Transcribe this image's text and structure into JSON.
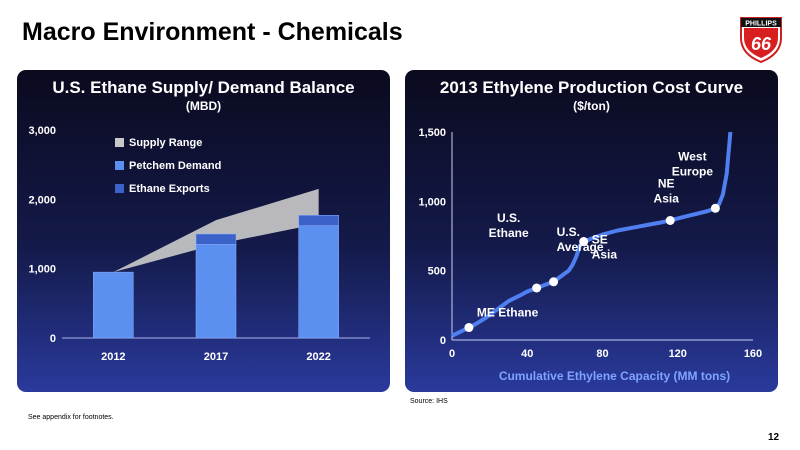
{
  "page": {
    "title": "Macro Environment - Chemicals",
    "footnote": "See appendix for footnotes.",
    "source": "Source: IHS",
    "page_number": "12",
    "logo_text": "PHILLIPS",
    "logo_number": "66"
  },
  "chart_data": [
    {
      "type": "bar",
      "title": "U.S. Ethane Supply/ Demand Balance",
      "subtitle": "(MBD)",
      "categories": [
        "2012",
        "2017",
        "2022"
      ],
      "ylim": [
        0,
        3000
      ],
      "yticks": [
        0,
        1000,
        2000,
        3000
      ],
      "ytick_labels": [
        "0",
        "1,000",
        "2,000",
        "3,000"
      ],
      "series": [
        {
          "name": "Petchem Demand",
          "values": [
            950,
            1350,
            1620
          ],
          "color": "#5b8ff0"
        },
        {
          "name": "Ethane Exports",
          "values": [
            0,
            150,
            150
          ],
          "color": "#3a62c9"
        }
      ],
      "supply_range": {
        "name": "Supply Range",
        "x": [
          2012,
          2017,
          2022
        ],
        "low": [
          950,
          1350,
          1650
        ],
        "high": [
          950,
          1700,
          2150
        ],
        "color": "#c8c8c8"
      },
      "legend": [
        "Supply Range",
        "Petchem Demand",
        "Ethane Exports"
      ],
      "legend_position": "top-center"
    },
    {
      "type": "line",
      "title": "2013 Ethylene Production Cost Curve",
      "subtitle": "($/ton)",
      "xlabel": "Cumulative Ethylene Capacity (MM tons)",
      "xlim": [
        0,
        160
      ],
      "ylim": [
        0,
        1500
      ],
      "xticks": [
        0,
        40,
        80,
        120,
        160
      ],
      "yticks": [
        0,
        500,
        1000,
        1500
      ],
      "ytick_labels": [
        "0",
        "500",
        "1,000",
        "1,500"
      ],
      "color": "#4f7ff0",
      "x": [
        0,
        3,
        6,
        9,
        12,
        18,
        24,
        30,
        36,
        40,
        44,
        48,
        52,
        56,
        60,
        62,
        64,
        66,
        68,
        70,
        74,
        80,
        88,
        96,
        104,
        112,
        118,
        124,
        130,
        136,
        140,
        142,
        144,
        146,
        148
      ],
      "y": [
        30,
        50,
        70,
        90,
        110,
        160,
        220,
        280,
        320,
        350,
        370,
        390,
        410,
        440,
        480,
        500,
        540,
        600,
        680,
        710,
        730,
        760,
        790,
        810,
        830,
        850,
        870,
        890,
        910,
        930,
        950,
        980,
        1050,
        1200,
        1500
      ],
      "markers": [
        {
          "x": 9,
          "y": 90,
          "label": "ME Ethane"
        },
        {
          "x": 45,
          "y": 375,
          "label": "U.S. Ethane"
        },
        {
          "x": 54,
          "y": 420,
          "label": "U.S. Average"
        },
        {
          "x": 70,
          "y": 710,
          "label": "SE Asia"
        },
        {
          "x": 116,
          "y": 862,
          "label": "NE Asia"
        },
        {
          "x": 140,
          "y": 950,
          "label": "West Europe"
        }
      ]
    }
  ]
}
